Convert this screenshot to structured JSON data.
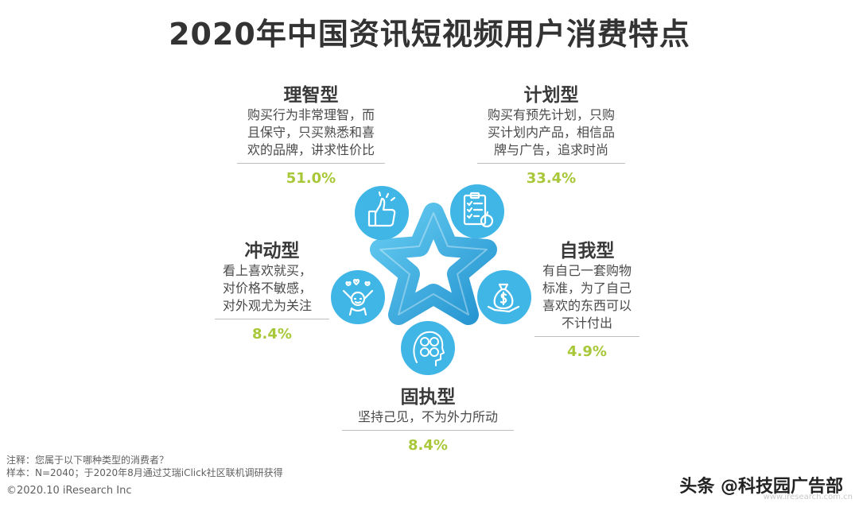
{
  "title": "2020年中国资讯短视频用户消费特点",
  "types": {
    "rational": {
      "name": "理智型",
      "desc": [
        "购买行为非常理智，而",
        "且保守，只买熟悉和喜",
        "欢的品牌，讲求性价比"
      ],
      "pct": "51.0%"
    },
    "planned": {
      "name": "计划型",
      "desc": [
        "购买有预先计划，只购",
        "买计划内产品，相信品",
        "牌与广告，追求时尚"
      ],
      "pct": "33.4%"
    },
    "impulsive": {
      "name": "冲动型",
      "desc": [
        "看上喜欢就买，",
        "对价格不敏感，",
        "对外观尤为关注"
      ],
      "pct": "8.4%"
    },
    "self": {
      "name": "自我型",
      "desc": [
        "有自己一套购物",
        "标准，为了自己",
        "喜欢的东西可以",
        "不计付出"
      ],
      "pct": "4.9%"
    },
    "stubborn": {
      "name": "固执型",
      "desc": [
        "坚持己见，不为外力所动"
      ],
      "pct": "8.4%"
    }
  },
  "icons": [
    "thumbs-up-icon",
    "checklist-icon",
    "money-bag-icon",
    "faces-icon",
    "celebrating-person-icon"
  ],
  "colors": {
    "circle": "#3fb6e6",
    "star": "#2aa8e0",
    "percent": "#a8c83a"
  },
  "notes": {
    "line1": "注释：您属于以下哪种类型的消费者？",
    "line2": "样本：N=2040；于2020年8月通过艾瑞iClick社区联机调研获得",
    "copyright": "©2020.10 iResearch Inc"
  },
  "watermark": "头条 @科技园广告部",
  "site": "www.iresearch.com.cn"
}
